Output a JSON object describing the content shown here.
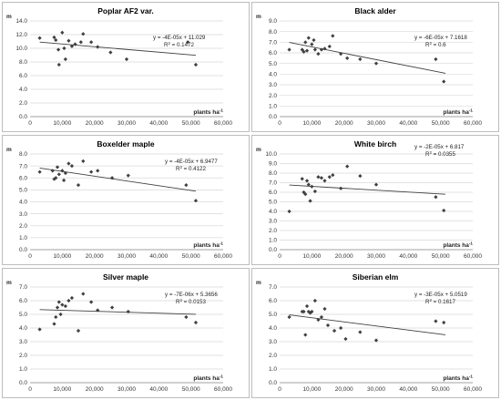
{
  "point_color": "#404040",
  "trend_color": "#404040",
  "grid_color": "#d9d9d9",
  "y_unit": "m",
  "x_unit": "plants ha",
  "x_unit_superscript": "-1",
  "chart_data": [
    {
      "type": "scatter",
      "title": "Poplar AF2 var.",
      "ylabel": "m",
      "xlabel": "plants ha-1",
      "xlim": [
        0,
        60000
      ],
      "ylim": [
        0,
        14
      ],
      "x_ticks": [
        "0",
        "10,000",
        "20,000",
        "30,000",
        "40,000",
        "50,000",
        "60,000"
      ],
      "y_ticks": [
        "0.0",
        "2.0",
        "4.0",
        "6.0",
        "8.0",
        "10.0",
        "12.0",
        "14.0"
      ],
      "equation": "y = -4E-05x + 11.029",
      "r2_prefix": "R",
      "r2_value": " = 0.1472",
      "trendline": {
        "slope": -4e-05,
        "intercept": 11.029
      },
      "points": [
        [
          3000,
          11.5
        ],
        [
          7500,
          11.6
        ],
        [
          8000,
          11.2
        ],
        [
          8800,
          9.8
        ],
        [
          9000,
          7.6
        ],
        [
          10000,
          12.3
        ],
        [
          10600,
          10.0
        ],
        [
          11000,
          8.4
        ],
        [
          12000,
          11.1
        ],
        [
          13000,
          10.3
        ],
        [
          14000,
          10.6
        ],
        [
          15800,
          10.9
        ],
        [
          16500,
          12.1
        ],
        [
          19000,
          10.9
        ],
        [
          21000,
          10.2
        ],
        [
          25000,
          9.4
        ],
        [
          30000,
          8.4
        ],
        [
          49000,
          10.9
        ],
        [
          51500,
          7.6
        ]
      ]
    },
    {
      "type": "scatter",
      "title": "Black alder",
      "ylabel": "m",
      "xlabel": "plants ha-1",
      "xlim": [
        0,
        60000
      ],
      "ylim": [
        0,
        9
      ],
      "x_ticks": [
        "0",
        "10,000",
        "20,000",
        "30,000",
        "40,000",
        "50,000",
        "60,000"
      ],
      "y_ticks": [
        "0.0",
        "1.0",
        "2.0",
        "3.0",
        "4.0",
        "5.0",
        "6.0",
        "7.0",
        "8.0",
        "9.0"
      ],
      "equation": "y = -6E-05x + 7.1618",
      "r2_prefix": "R",
      "r2_value": " = 0.6",
      "trendline": {
        "slope": -6e-05,
        "intercept": 7.1618
      },
      "points": [
        [
          3000,
          6.3
        ],
        [
          7000,
          6.3
        ],
        [
          7500,
          6.1
        ],
        [
          8000,
          7.0
        ],
        [
          8500,
          6.2
        ],
        [
          9000,
          7.4
        ],
        [
          10000,
          6.8
        ],
        [
          10600,
          7.2
        ],
        [
          11000,
          6.3
        ],
        [
          12000,
          5.9
        ],
        [
          13000,
          6.3
        ],
        [
          14000,
          6.4
        ],
        [
          15500,
          6.6
        ],
        [
          16500,
          7.6
        ],
        [
          19000,
          5.9
        ],
        [
          21000,
          5.5
        ],
        [
          25000,
          5.4
        ],
        [
          30000,
          5.0
        ],
        [
          48500,
          5.4
        ],
        [
          51000,
          3.3
        ]
      ]
    },
    {
      "type": "scatter",
      "title": "Boxelder maple",
      "ylabel": "m",
      "xlabel": "plants ha-1",
      "xlim": [
        0,
        60000
      ],
      "ylim": [
        0,
        8
      ],
      "x_ticks": [
        "0",
        "10,000",
        "20,000",
        "30,000",
        "40,000",
        "50,000",
        "60,000"
      ],
      "y_ticks": [
        "0.0",
        "1.0",
        "2.0",
        "3.0",
        "4.0",
        "5.0",
        "6.0",
        "7.0",
        "8.0"
      ],
      "equation": "y = -4E-05x + 6.9477",
      "r2_prefix": "R",
      "r2_value": " = 0.4122",
      "trendline": {
        "slope": -4e-05,
        "intercept": 6.9477
      },
      "points": [
        [
          3000,
          6.5
        ],
        [
          7000,
          6.6
        ],
        [
          7500,
          5.9
        ],
        [
          8000,
          6.0
        ],
        [
          8500,
          6.9
        ],
        [
          9000,
          6.3
        ],
        [
          10000,
          6.6
        ],
        [
          10500,
          5.8
        ],
        [
          11000,
          6.4
        ],
        [
          12000,
          7.2
        ],
        [
          13000,
          7.0
        ],
        [
          15000,
          5.4
        ],
        [
          16500,
          7.4
        ],
        [
          19000,
          6.5
        ],
        [
          21000,
          6.6
        ],
        [
          25500,
          6.0
        ],
        [
          30500,
          6.2
        ],
        [
          48500,
          5.4
        ],
        [
          51500,
          4.1
        ]
      ]
    },
    {
      "type": "scatter",
      "title": "White birch",
      "ylabel": "m",
      "xlabel": "plants ha-1",
      "xlim": [
        0,
        60000
      ],
      "ylim": [
        0,
        10
      ],
      "x_ticks": [
        "0",
        "10,000",
        "20,000",
        "30,000",
        "40,000",
        "50,000",
        "60,000"
      ],
      "y_ticks": [
        "0.0",
        "1.0",
        "2.0",
        "3.0",
        "4.0",
        "5.0",
        "6.0",
        "7.0",
        "8.0",
        "9.0",
        "10.0"
      ],
      "equation": "y = -2E-05x + 6.817",
      "r2_prefix": "R",
      "r2_value": " = 0.0355",
      "trendline": {
        "slope": -2e-05,
        "intercept": 6.817
      },
      "points": [
        [
          3000,
          4.0
        ],
        [
          7000,
          7.4
        ],
        [
          7500,
          6.0
        ],
        [
          8000,
          5.8
        ],
        [
          8500,
          7.2
        ],
        [
          9000,
          6.8
        ],
        [
          9500,
          5.1
        ],
        [
          10000,
          6.6
        ],
        [
          11000,
          6.1
        ],
        [
          12000,
          7.6
        ],
        [
          13000,
          7.5
        ],
        [
          14000,
          7.2
        ],
        [
          15500,
          7.6
        ],
        [
          16500,
          7.8
        ],
        [
          19000,
          6.4
        ],
        [
          21000,
          8.7
        ],
        [
          25000,
          7.7
        ],
        [
          30000,
          6.8
        ],
        [
          48500,
          5.5
        ],
        [
          51000,
          4.1
        ]
      ]
    },
    {
      "type": "scatter",
      "title": "Silver maple",
      "ylabel": "m",
      "xlabel": "plants ha-1",
      "xlim": [
        0,
        60000
      ],
      "ylim": [
        0,
        7
      ],
      "x_ticks": [
        "0",
        "10,000",
        "20,000",
        "30,000",
        "40,000",
        "50,000",
        "60,000"
      ],
      "y_ticks": [
        "0.0",
        "1.0",
        "2.0",
        "3.0",
        "4.0",
        "5.0",
        "6.0",
        "7.0"
      ],
      "equation": "y = -7E-06x + 5.3656",
      "r2_prefix": "R",
      "r2_value": " = 0.0153",
      "trendline": {
        "slope": -7e-06,
        "intercept": 5.3656
      },
      "points": [
        [
          3000,
          3.9
        ],
        [
          7500,
          4.3
        ],
        [
          8000,
          4.8
        ],
        [
          8500,
          5.5
        ],
        [
          9000,
          5.9
        ],
        [
          9500,
          5.0
        ],
        [
          10000,
          5.7
        ],
        [
          11000,
          5.6
        ],
        [
          12000,
          6.0
        ],
        [
          13000,
          6.2
        ],
        [
          15000,
          3.8
        ],
        [
          16500,
          6.5
        ],
        [
          19000,
          5.9
        ],
        [
          21000,
          5.3
        ],
        [
          25500,
          5.5
        ],
        [
          30500,
          5.2
        ],
        [
          48500,
          4.8
        ],
        [
          51500,
          4.4
        ]
      ]
    },
    {
      "type": "scatter",
      "title": "Siberian elm",
      "ylabel": "m",
      "xlabel": "plants ha-1",
      "xlim": [
        0,
        60000
      ],
      "ylim": [
        0,
        7
      ],
      "x_ticks": [
        "0",
        "10,000",
        "20,000",
        "30,000",
        "40,000",
        "50,000",
        "60,000"
      ],
      "y_ticks": [
        "0.0",
        "1.0",
        "2.0",
        "3.0",
        "4.0",
        "5.0",
        "6.0",
        "7.0"
      ],
      "equation": "y = -3E-05x + 5.0519",
      "r2_prefix": "R",
      "r2_value": " = 0.1617",
      "trendline": {
        "slope": -3e-05,
        "intercept": 5.0519
      },
      "points": [
        [
          3000,
          4.8
        ],
        [
          7000,
          5.2
        ],
        [
          7500,
          5.2
        ],
        [
          8000,
          3.5
        ],
        [
          8500,
          5.6
        ],
        [
          9000,
          5.2
        ],
        [
          9500,
          5.1
        ],
        [
          10000,
          5.2
        ],
        [
          11000,
          6.0
        ],
        [
          12000,
          4.6
        ],
        [
          13000,
          4.8
        ],
        [
          14000,
          5.4
        ],
        [
          15000,
          4.2
        ],
        [
          17000,
          3.8
        ],
        [
          19000,
          4.0
        ],
        [
          20500,
          3.2
        ],
        [
          25000,
          3.7
        ],
        [
          30000,
          3.1
        ],
        [
          48500,
          4.5
        ],
        [
          51000,
          4.4
        ]
      ]
    }
  ]
}
